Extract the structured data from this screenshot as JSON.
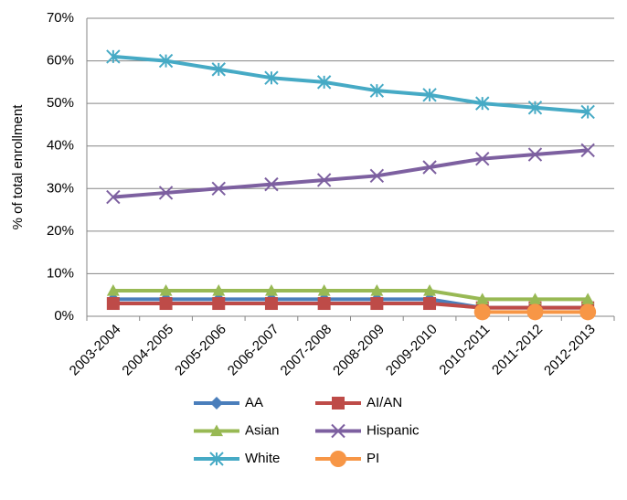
{
  "chart_data": {
    "type": "line",
    "y_label": "% of total enrollment",
    "categories": [
      "2003-2004",
      "2004-2005",
      "2005-2006",
      "2006-2007",
      "2007-2008",
      "2008-2009",
      "2009-2010",
      "2010-2011",
      "2011-2012",
      "2012-2013"
    ],
    "series": [
      {
        "name": "AA",
        "color": "#4a7ebb",
        "marker": "diamond",
        "values": [
          4,
          4,
          4,
          4,
          4,
          4,
          4,
          2,
          2,
          2
        ]
      },
      {
        "name": "AI/AN",
        "color": "#be4b48",
        "marker": "square",
        "values": [
          3,
          3,
          3,
          3,
          3,
          3,
          3,
          2,
          2,
          2
        ]
      },
      {
        "name": "Asian",
        "color": "#98b954",
        "marker": "triangle",
        "values": [
          6,
          6,
          6,
          6,
          6,
          6,
          6,
          4,
          4,
          4
        ]
      },
      {
        "name": "Hispanic",
        "color": "#7d60a0",
        "marker": "x",
        "values": [
          28,
          29,
          30,
          31,
          32,
          33,
          35,
          37,
          38,
          39
        ]
      },
      {
        "name": "White",
        "color": "#46aac5",
        "marker": "star",
        "values": [
          61,
          60,
          58,
          56,
          55,
          53,
          52,
          50,
          49,
          48
        ]
      },
      {
        "name": "PI",
        "color": "#f79646",
        "marker": "circle",
        "values": [
          null,
          null,
          null,
          null,
          null,
          null,
          null,
          1,
          1,
          1
        ]
      }
    ],
    "ylim": [
      0,
      70
    ],
    "yticks": [
      {
        "value": 0,
        "label": "0%"
      },
      {
        "value": 10,
        "label": "10%"
      },
      {
        "value": 20,
        "label": "20%"
      },
      {
        "value": 30,
        "label": "30%"
      },
      {
        "value": 40,
        "label": "40%"
      },
      {
        "value": 50,
        "label": "50%"
      },
      {
        "value": 60,
        "label": "60%"
      },
      {
        "value": 70,
        "label": "70%"
      }
    ],
    "grid": true
  }
}
